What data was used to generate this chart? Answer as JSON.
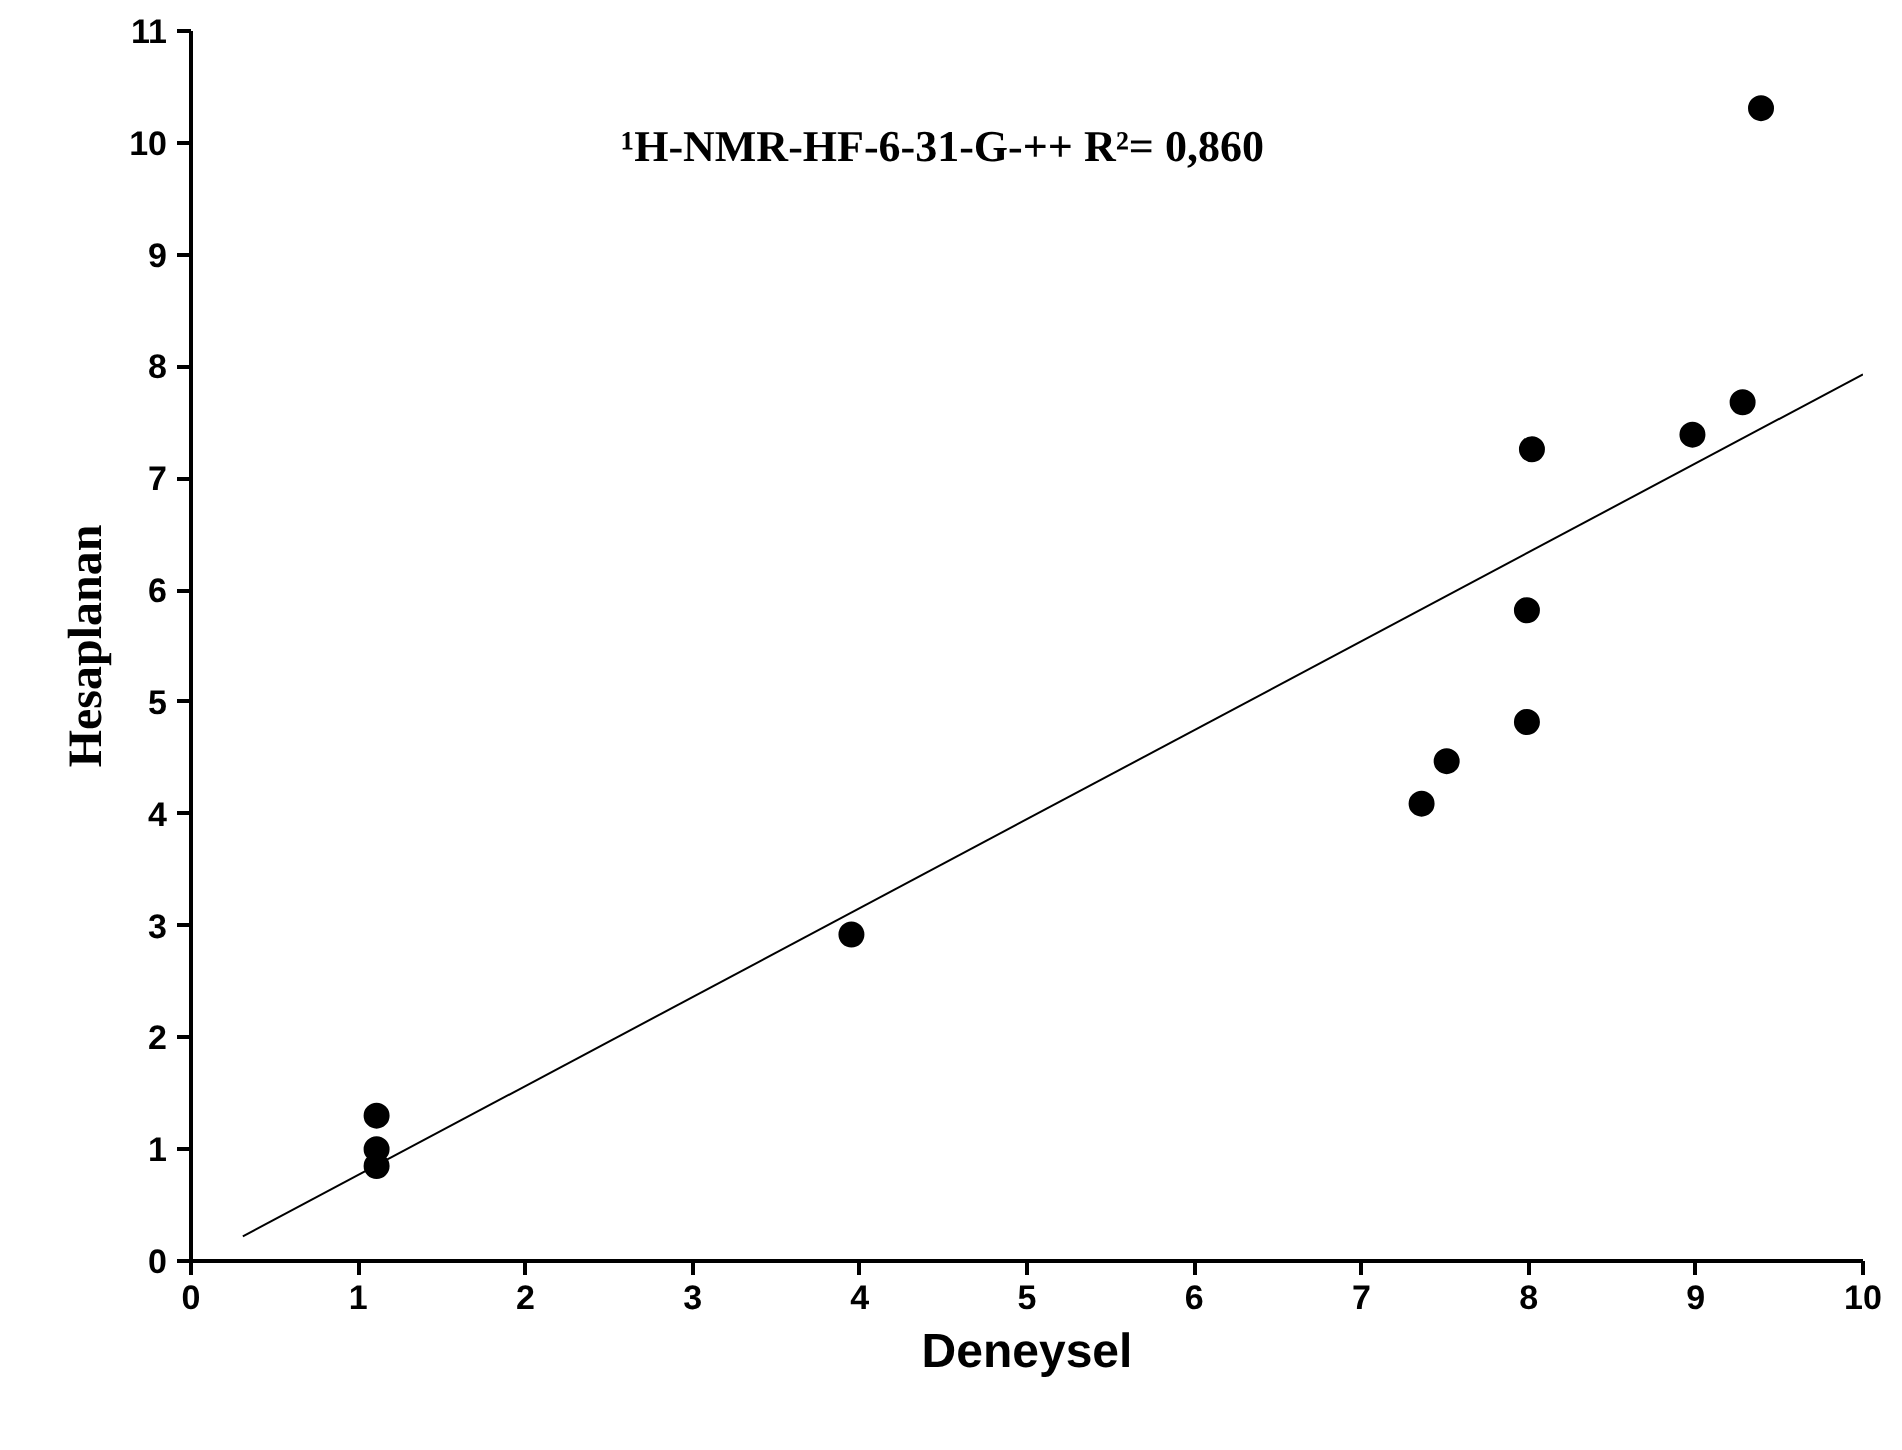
{
  "chart_data": {
    "type": "scatter",
    "xlabel": "Deneysel",
    "ylabel": "Hesaplanan",
    "grid": false,
    "xlim": [
      0,
      10
    ],
    "ylim": [
      0,
      11
    ],
    "xticks": [
      0,
      1,
      2,
      3,
      4,
      5,
      6,
      7,
      8,
      9,
      10
    ],
    "yticks": [
      0,
      1,
      2,
      3,
      4,
      5,
      6,
      7,
      8,
      9,
      10,
      11
    ],
    "annotations": [
      "¹H-NMR-HF-6-31-G-++ R²= 0,860"
    ],
    "series": [
      {
        "color": "#000000",
        "marker": "circle",
        "x": [
          1.11,
          1.11,
          1.11,
          3.95,
          7.36,
          7.51,
          7.99,
          7.99,
          8.02,
          8.98,
          9.28,
          9.39
        ],
        "values": [
          1.3,
          1.0,
          0.85,
          2.92,
          4.09,
          4.47,
          4.82,
          5.82,
          7.26,
          7.39,
          7.68,
          10.31
        ]
      },
      {
        "type": "line",
        "color": "#000000",
        "line_style": "solid",
        "marker": "none",
        "x": [
          0.31,
          10
        ],
        "values": [
          0.22,
          7.93
        ]
      }
    ]
  }
}
